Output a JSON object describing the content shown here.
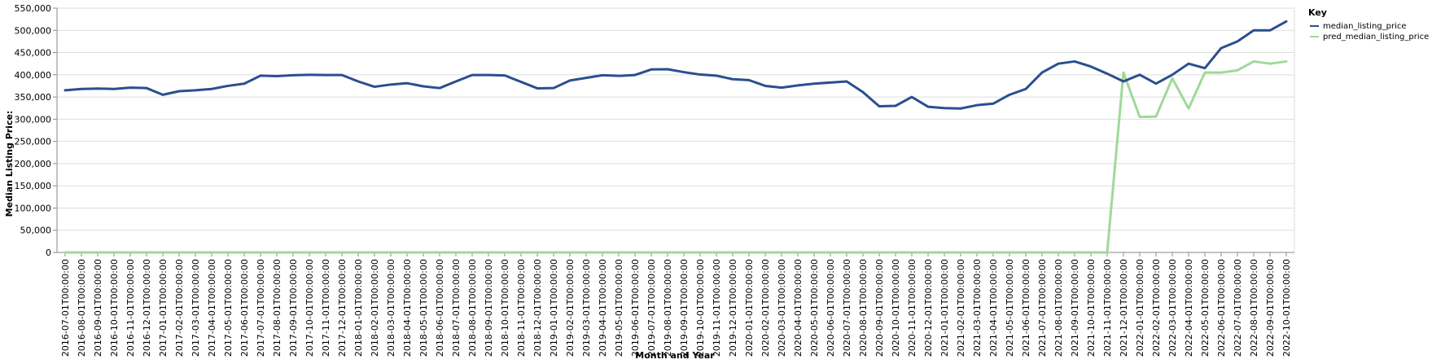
{
  "chart_data": {
    "type": "line",
    "xlabel": "Month and Year",
    "ylabel": "Median Listing Price:",
    "ylim": [
      0,
      550000
    ],
    "y_ticks": [
      0,
      50000,
      100000,
      150000,
      200000,
      250000,
      300000,
      350000,
      400000,
      450000,
      500000,
      550000
    ],
    "y_tick_labels": [
      "0",
      "50,000",
      "100,000",
      "150,000",
      "200,000",
      "250,000",
      "300,000",
      "350,000",
      "400,000",
      "450,000",
      "500,000",
      "550,000"
    ],
    "grid": true,
    "legend": {
      "title": "Key",
      "position": "top-right"
    },
    "categories": [
      "2016-07-01T00:00:00",
      "2016-08-01T00:00:00",
      "2016-09-01T00:00:00",
      "2016-10-01T00:00:00",
      "2016-11-01T00:00:00",
      "2016-12-01T00:00:00",
      "2017-01-01T00:00:00",
      "2017-02-01T00:00:00",
      "2017-03-01T00:00:00",
      "2017-04-01T00:00:00",
      "2017-05-01T00:00:00",
      "2017-06-01T00:00:00",
      "2017-07-01T00:00:00",
      "2017-08-01T00:00:00",
      "2017-09-01T00:00:00",
      "2017-10-01T00:00:00",
      "2017-11-01T00:00:00",
      "2017-12-01T00:00:00",
      "2018-01-01T00:00:00",
      "2018-02-01T00:00:00",
      "2018-03-01T00:00:00",
      "2018-04-01T00:00:00",
      "2018-05-01T00:00:00",
      "2018-06-01T00:00:00",
      "2018-07-01T00:00:00",
      "2018-08-01T00:00:00",
      "2018-09-01T00:00:00",
      "2018-10-01T00:00:00",
      "2018-11-01T00:00:00",
      "2018-12-01T00:00:00",
      "2019-01-01T00:00:00",
      "2019-02-01T00:00:00",
      "2019-03-01T00:00:00",
      "2019-04-01T00:00:00",
      "2019-05-01T00:00:00",
      "2019-06-01T00:00:00",
      "2019-07-01T00:00:00",
      "2019-08-01T00:00:00",
      "2019-09-01T00:00:00",
      "2019-10-01T00:00:00",
      "2019-11-01T00:00:00",
      "2019-12-01T00:00:00",
      "2020-01-01T00:00:00",
      "2020-02-01T00:00:00",
      "2020-03-01T00:00:00",
      "2020-04-01T00:00:00",
      "2020-05-01T00:00:00",
      "2020-06-01T00:00:00",
      "2020-07-01T00:00:00",
      "2020-08-01T00:00:00",
      "2020-09-01T00:00:00",
      "2020-10-01T00:00:00",
      "2020-11-01T00:00:00",
      "2020-12-01T00:00:00",
      "2021-01-01T00:00:00",
      "2021-02-01T00:00:00",
      "2021-03-01T00:00:00",
      "2021-04-01T00:00:00",
      "2021-05-01T00:00:00",
      "2021-06-01T00:00:00",
      "2021-07-01T00:00:00",
      "2021-08-01T00:00:00",
      "2021-09-01T00:00:00",
      "2021-10-01T00:00:00",
      "2021-11-01T00:00:00",
      "2021-12-01T00:00:00",
      "2022-01-01T00:00:00",
      "2022-02-01T00:00:00",
      "2022-03-01T00:00:00",
      "2022-04-01T00:00:00",
      "2022-05-01T00:00:00",
      "2022-06-01T00:00:00",
      "2022-07-01T00:00:00",
      "2022-08-01T00:00:00",
      "2022-09-01T00:00:00",
      "2022-10-01T00:00:00"
    ],
    "series": [
      {
        "name": "median_listing_price",
        "color": "#2a4f8f",
        "values": [
          365000,
          368000,
          369000,
          368000,
          371000,
          370000,
          355000,
          363000,
          365000,
          368000,
          375000,
          380000,
          398000,
          397000,
          399000,
          400000,
          399500,
          399500,
          385000,
          373000,
          378000,
          381000,
          374000,
          370000,
          385000,
          399500,
          399500,
          398500,
          384000,
          369500,
          370000,
          387000,
          393000,
          399000,
          397500,
          399500,
          412000,
          412500,
          406000,
          400500,
          398000,
          390000,
          388000,
          375000,
          371000,
          376000,
          380000,
          382500,
          385000,
          361000,
          329000,
          330000,
          350000,
          328000,
          325000,
          324000,
          331500,
          335000,
          355000,
          368000,
          405000,
          425000,
          430000,
          418500,
          402500,
          385000,
          400000,
          380000,
          400000,
          425000,
          415000,
          460000,
          475000,
          500000,
          500000,
          520000
        ]
      },
      {
        "name": "pred_median_listing_price",
        "color": "#9fd99b",
        "values": [
          0,
          0,
          0,
          0,
          0,
          0,
          0,
          0,
          0,
          0,
          0,
          0,
          0,
          0,
          0,
          0,
          0,
          0,
          0,
          0,
          0,
          0,
          0,
          0,
          0,
          0,
          0,
          0,
          0,
          0,
          0,
          0,
          0,
          0,
          0,
          0,
          0,
          0,
          0,
          0,
          0,
          0,
          0,
          0,
          0,
          0,
          0,
          0,
          0,
          0,
          0,
          0,
          0,
          0,
          0,
          0,
          0,
          0,
          0,
          0,
          0,
          0,
          0,
          0,
          0,
          405000,
          305000,
          306000,
          392000,
          324000,
          405000,
          405000,
          410000,
          430000,
          425000,
          430000
        ]
      }
    ]
  }
}
